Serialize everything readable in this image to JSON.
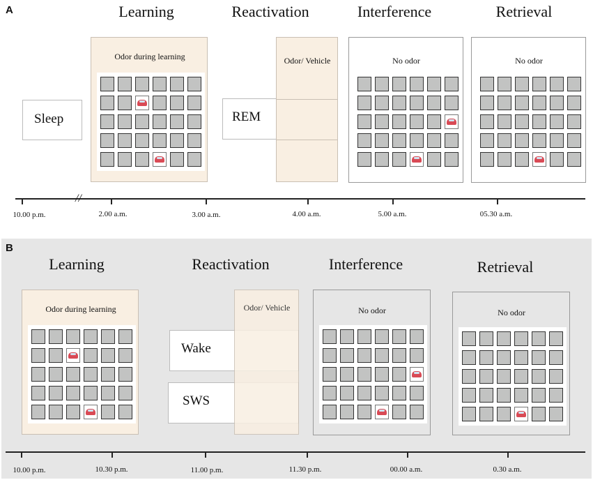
{
  "panelA": {
    "label": "A",
    "phases": [
      "Learning",
      "Reactivation",
      "Interference",
      "Retrieval"
    ],
    "sleep": "Sleep",
    "rem": "REM",
    "odor_learning": "Odor during learning",
    "odor_vehicle": "Odor/ Vehicle",
    "no_odor": "No odor",
    "times": [
      "10.00 p.m.",
      "2.00 a.m.",
      "3.00 a.m.",
      "4.00 a.m.",
      "5.00 a.m.",
      "05.30 a.m."
    ],
    "grids": {
      "learning": [
        [
          1,
          2
        ],
        [
          4,
          3
        ]
      ],
      "interference": [
        [
          2,
          5
        ],
        [
          4,
          3
        ]
      ],
      "retrieval": [
        [
          4,
          3
        ]
      ]
    }
  },
  "panelB": {
    "label": "B",
    "phases": [
      "Learning",
      "Reactivation",
      "Interference",
      "Retrieval"
    ],
    "wake": "Wake",
    "sws": "SWS",
    "odor_learning": "Odor during learning",
    "odor_vehicle": "Odor/ Vehicle",
    "no_odor": "No odor",
    "times": [
      "10.00 p.m.",
      "10.30 p.m.",
      "11.00 p.m.",
      "11.30 p.m.",
      "00.00 a.m.",
      "0.30 a.m."
    ],
    "grids": {
      "learning": [
        [
          1,
          2
        ],
        [
          4,
          3
        ]
      ],
      "interference": [
        [
          2,
          5
        ],
        [
          4,
          3
        ]
      ],
      "retrieval": [
        [
          4,
          3
        ]
      ]
    }
  },
  "colors": {
    "odor_fill": "#f9efe2",
    "panel_b_bg": "#e6e6e6",
    "tile": "#c2c3c2",
    "car": "#d94a55"
  }
}
